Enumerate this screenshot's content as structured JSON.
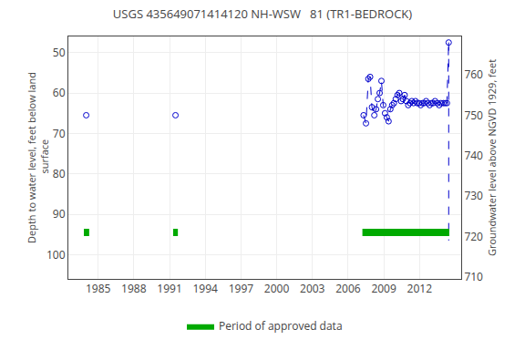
{
  "chart_data": {
    "type": "scatter",
    "title": "USGS 435649071414120 NH-WSW   81 (TR1-BEDROCK)",
    "ylabel": "Depth to water level, feet below land\n surface",
    "y2label": "Groundwater level above NGVD 1929, feet",
    "xlim": [
      1982.5,
      2015.5
    ],
    "xticks": [
      1985,
      1988,
      1991,
      1994,
      1997,
      2000,
      2003,
      2006,
      2009,
      2012
    ],
    "ylim": [
      106,
      46
    ],
    "yticks": [
      50,
      60,
      70,
      80,
      90,
      100
    ],
    "y2lim": [
      709.5,
      769.5
    ],
    "y2ticks": [
      710,
      720,
      730,
      740,
      750,
      760
    ],
    "grid": true,
    "legend": "bottom",
    "series": [
      {
        "type": "scatter",
        "marker": "circle-open",
        "color": "#0000cc",
        "x": [
          1984.0,
          1991.5,
          2007.3,
          2007.5,
          2007.7,
          2007.85,
          2008.0,
          2008.2,
          2008.35,
          2008.5,
          2008.65,
          2008.8,
          2008.95,
          2009.1,
          2009.25,
          2009.4,
          2009.55,
          2009.7,
          2009.85,
          2010.0,
          2010.15,
          2010.3,
          2010.45,
          2010.6,
          2010.75,
          2010.9,
          2011.05,
          2011.2,
          2011.35,
          2011.5,
          2011.65,
          2011.8,
          2011.95,
          2012.1,
          2012.25,
          2012.4,
          2012.55,
          2012.7,
          2012.85,
          2013.0,
          2013.15,
          2013.3,
          2013.5,
          2013.65,
          2013.8,
          2014.0,
          2014.15,
          2014.3
        ],
        "values": [
          65.5,
          65.5,
          65.5,
          67.5,
          56.5,
          56.0,
          63.5,
          65.5,
          64.0,
          61.5,
          60.0,
          57.0,
          63.0,
          65.0,
          66.0,
          67.0,
          64.0,
          63.0,
          62.5,
          61.5,
          60.5,
          60.0,
          62.0,
          61.5,
          60.5,
          62.0,
          63.0,
          62.5,
          62.0,
          62.5,
          62.0,
          62.5,
          62.5,
          63.0,
          62.5,
          62.5,
          62.0,
          62.5,
          63.0,
          62.5,
          62.5,
          62.0,
          62.5,
          63.0,
          62.5,
          62.5,
          62.5,
          62.5
        ]
      },
      {
        "type": "scatter",
        "marker": "circle-open",
        "color": "#0000cc",
        "x": [
          2014.45
        ],
        "values": [
          47.5
        ]
      },
      {
        "type": "line",
        "line_style": "dashed",
        "color": "#0000cc",
        "x": [
          2007.3,
          2007.5,
          2007.7,
          2007.85,
          2008.0,
          2008.2,
          2008.35,
          2008.5,
          2008.65,
          2008.8,
          2008.95,
          2009.1,
          2009.25,
          2009.4,
          2009.55,
          2009.7,
          2009.85,
          2010.0,
          2010.15,
          2010.3,
          2010.45,
          2010.6,
          2010.75,
          2010.9,
          2011.05,
          2011.2,
          2011.35,
          2011.5,
          2011.65,
          2011.8,
          2011.95,
          2012.1,
          2012.25,
          2012.4,
          2012.55,
          2012.7,
          2012.85,
          2013.0,
          2013.15,
          2013.3,
          2013.5,
          2013.65,
          2013.8,
          2014.0,
          2014.15,
          2014.3,
          2014.45
        ],
        "values": [
          65.5,
          67.5,
          56.5,
          56.0,
          63.5,
          65.5,
          64.0,
          61.5,
          60.0,
          57.0,
          63.0,
          65.0,
          66.0,
          67.0,
          64.0,
          63.0,
          62.5,
          61.5,
          60.5,
          60.0,
          62.0,
          61.5,
          60.5,
          62.0,
          63.0,
          62.5,
          62.0,
          62.5,
          62.0,
          62.5,
          62.5,
          63.0,
          62.5,
          62.5,
          62.0,
          62.5,
          63.0,
          62.5,
          62.5,
          62.0,
          62.5,
          63.0,
          62.5,
          62.5,
          62.5,
          62.5,
          47.5
        ]
      },
      {
        "type": "line",
        "line_style": "dashed",
        "color": "#0000cc",
        "x": [
          2014.45,
          2014.45
        ],
        "values": [
          47.5,
          96.5
        ]
      },
      {
        "type": "range",
        "name": "Period of approved data",
        "color": "#00aa00",
        "periods": [
          {
            "start": 1983.8,
            "end": 1984.25
          },
          {
            "start": 1991.3,
            "end": 1991.7
          },
          {
            "start": 2007.2,
            "end": 2014.5
          }
        ],
        "y": 94.5,
        "height": 1.8
      }
    ]
  }
}
